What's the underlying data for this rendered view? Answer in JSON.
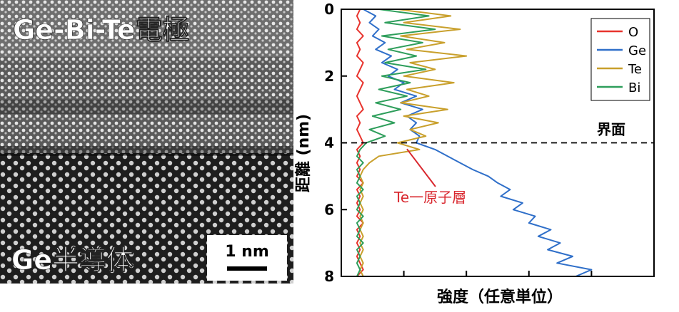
{
  "stem_image": {
    "electrode_label": "Ge-Bi-Te電極",
    "semiconductor_label": "Ge半導体",
    "scale_bar_label": "1 nm"
  },
  "chart_data": {
    "type": "line",
    "orientation": "vertical-depth",
    "xlabel": "強度（任意単位）",
    "ylabel": "距離 (nm)",
    "ylim": [
      0,
      8
    ],
    "y_inverted": true,
    "yticks": [
      "0",
      "2",
      "4",
      "6",
      "8"
    ],
    "legend_position": "top-right",
    "series": [
      {
        "name": "O",
        "color": "#e8342e",
        "x": [
          0.06,
          0.05,
          0.06,
          0.05,
          0.07,
          0.05,
          0.06,
          0.05,
          0.07,
          0.06,
          0.05,
          0.07,
          0.06,
          0.05,
          0.06,
          0.07,
          0.05,
          0.06,
          0.05,
          0.06,
          0.07,
          0.05,
          0.06,
          0.05,
          0.06,
          0.05,
          0.07,
          0.05,
          0.06,
          0.05,
          0.06,
          0.05,
          0.07,
          0.05,
          0.06,
          0.05,
          0.06,
          0.05,
          0.06,
          0.07,
          0.05
        ],
        "y": [
          0,
          0.2,
          0.4,
          0.6,
          0.8,
          1.0,
          1.2,
          1.4,
          1.6,
          1.8,
          2.0,
          2.2,
          2.4,
          2.6,
          2.8,
          3.0,
          3.2,
          3.4,
          3.6,
          3.8,
          4.0,
          4.2,
          4.4,
          4.6,
          4.8,
          5.0,
          5.2,
          5.4,
          5.6,
          5.8,
          6.0,
          6.2,
          6.4,
          6.6,
          6.8,
          7.0,
          7.2,
          7.4,
          7.6,
          7.8,
          8.0
        ]
      },
      {
        "name": "Ge",
        "color": "#2f6fc9",
        "x": [
          0.07,
          0.11,
          0.09,
          0.12,
          0.1,
          0.14,
          0.11,
          0.16,
          0.13,
          0.18,
          0.15,
          0.2,
          0.17,
          0.24,
          0.19,
          0.26,
          0.21,
          0.24,
          0.22,
          0.25,
          0.24,
          0.3,
          0.34,
          0.38,
          0.42,
          0.47,
          0.5,
          0.54,
          0.51,
          0.58,
          0.55,
          0.62,
          0.6,
          0.67,
          0.63,
          0.7,
          0.66,
          0.74,
          0.69,
          0.8,
          0.75
        ],
        "y": [
          0,
          0.2,
          0.4,
          0.6,
          0.8,
          1.0,
          1.2,
          1.4,
          1.6,
          1.8,
          2.0,
          2.2,
          2.4,
          2.6,
          2.8,
          3.0,
          3.2,
          3.4,
          3.6,
          3.8,
          4.0,
          4.2,
          4.4,
          4.6,
          4.8,
          5.0,
          5.2,
          5.4,
          5.6,
          5.8,
          6.0,
          6.2,
          6.4,
          6.6,
          6.8,
          7.0,
          7.2,
          7.4,
          7.6,
          7.8,
          8.0
        ]
      },
      {
        "name": "Te",
        "color": "#c9a02c",
        "x": [
          0.18,
          0.35,
          0.2,
          0.38,
          0.19,
          0.33,
          0.21,
          0.4,
          0.22,
          0.3,
          0.2,
          0.36,
          0.21,
          0.28,
          0.19,
          0.34,
          0.2,
          0.31,
          0.22,
          0.27,
          0.18,
          0.25,
          0.12,
          0.09,
          0.07,
          0.06,
          0.07,
          0.06,
          0.07,
          0.06,
          0.07,
          0.06,
          0.07,
          0.06,
          0.07,
          0.06,
          0.07,
          0.06,
          0.07,
          0.06,
          0.07
        ],
        "y": [
          0,
          0.2,
          0.4,
          0.6,
          0.8,
          1.0,
          1.2,
          1.4,
          1.6,
          1.8,
          2.0,
          2.2,
          2.4,
          2.6,
          2.8,
          3.0,
          3.2,
          3.4,
          3.6,
          3.8,
          4.0,
          4.2,
          4.4,
          4.6,
          4.8,
          5.0,
          5.2,
          5.4,
          5.6,
          5.8,
          6.0,
          6.2,
          6.4,
          6.6,
          6.8,
          7.0,
          7.2,
          7.4,
          7.6,
          7.8,
          8.0
        ]
      },
      {
        "name": "Bi",
        "color": "#2e9e5b",
        "x": [
          0.12,
          0.28,
          0.14,
          0.3,
          0.13,
          0.26,
          0.15,
          0.24,
          0.14,
          0.27,
          0.13,
          0.22,
          0.12,
          0.21,
          0.11,
          0.19,
          0.1,
          0.17,
          0.09,
          0.14,
          0.08,
          0.06,
          0.05,
          0.07,
          0.05,
          0.06,
          0.05,
          0.07,
          0.05,
          0.06,
          0.05,
          0.07,
          0.05,
          0.06,
          0.05,
          0.07,
          0.05,
          0.06,
          0.05,
          0.06,
          0.05
        ],
        "y": [
          0,
          0.2,
          0.4,
          0.6,
          0.8,
          1.0,
          1.2,
          1.4,
          1.6,
          1.8,
          2.0,
          2.2,
          2.4,
          2.6,
          2.8,
          3.0,
          3.2,
          3.4,
          3.6,
          3.8,
          4.0,
          4.2,
          4.4,
          4.6,
          4.8,
          5.0,
          5.2,
          5.4,
          5.6,
          5.8,
          6.0,
          6.2,
          6.4,
          6.6,
          6.8,
          7.0,
          7.2,
          7.4,
          7.6,
          7.8,
          8.0
        ]
      }
    ],
    "annotations": {
      "interface_depth": 4,
      "interface_label": "界面",
      "te_layer_label": "Te一原子層",
      "te_layer_point": [
        0.21,
        4.1
      ]
    }
  }
}
